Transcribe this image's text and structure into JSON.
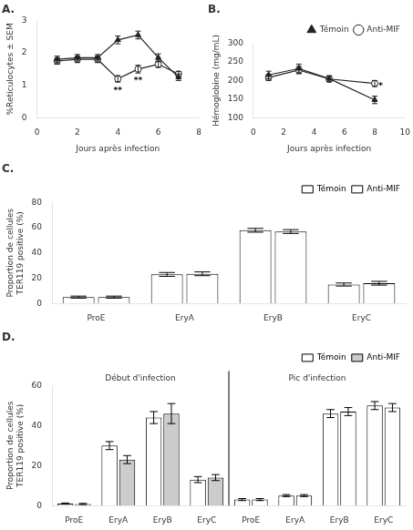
{
  "chart_data": [
    {
      "type": "line",
      "title": "A.",
      "xlabel": "Jours après infection",
      "ylabel": "%Reticulocytes ± SEM",
      "xlim": [
        0,
        8
      ],
      "xticks": [
        0,
        2,
        4,
        6,
        8
      ],
      "ylim": [
        0,
        3
      ],
      "yticks": [
        0,
        1,
        2,
        3
      ],
      "grid": false,
      "x": [
        1,
        2,
        3,
        4,
        5,
        6,
        7
      ],
      "series": [
        {
          "color": "#222222",
          "marker": "triangle",
          "values": [
            1.8,
            1.85,
            1.85,
            2.4,
            2.55,
            1.85,
            1.25
          ],
          "errors": [
            0.1,
            0.1,
            0.1,
            0.12,
            0.12,
            0.12,
            0.1
          ]
        },
        {
          "color": "#222222",
          "marker": "circle_open",
          "values": [
            1.75,
            1.8,
            1.8,
            1.2,
            1.5,
            1.65,
            1.35
          ],
          "errors": [
            0.1,
            0.1,
            0.1,
            0.1,
            0.12,
            0.1,
            0.08
          ]
        }
      ],
      "annotations": [
        {
          "x": 4,
          "y": 0.95,
          "text": "**"
        },
        {
          "x": 5,
          "y": 1.28,
          "text": "**"
        }
      ]
    },
    {
      "type": "line",
      "title": "B.",
      "xlabel": "Jours après infection",
      "ylabel": "Hémoglobine (mg/mL)",
      "xlim": [
        0,
        10
      ],
      "xticks": [
        0,
        2,
        4,
        6,
        8,
        10
      ],
      "ylim": [
        100,
        300
      ],
      "yticks": [
        100,
        150,
        200,
        250,
        300
      ],
      "grid": false,
      "legend": "upper right",
      "x": [
        1,
        3,
        5,
        8
      ],
      "series": [
        {
          "name": "Témoin",
          "color": "#222222",
          "marker": "triangle",
          "values": [
            215,
            232,
            205,
            148
          ],
          "errors": [
            10,
            12,
            8,
            10
          ]
        },
        {
          "name": "Anti-MIF",
          "color": "#222222",
          "marker": "circle_open",
          "values": [
            208,
            228,
            204,
            192
          ],
          "errors": [
            8,
            10,
            8,
            8
          ]
        }
      ],
      "annotations": [
        {
          "x": 8.4,
          "y": 196,
          "text": "*"
        }
      ]
    },
    {
      "type": "bar",
      "title": "C.",
      "ylabel": "Proportion de cellules\nTER119 positive (%)",
      "ylim": [
        0,
        80
      ],
      "yticks": [
        0,
        20,
        40,
        60,
        80
      ],
      "grid": false,
      "legend": "upper right",
      "categories": [
        "ProE",
        "EryA",
        "EryB",
        "EryC"
      ],
      "series": [
        {
          "name": "Témoin",
          "color": "#ffffff",
          "values": [
            5,
            23,
            58,
            15
          ],
          "errors": [
            0.8,
            1.5,
            1.5,
            1.2
          ]
        },
        {
          "name": "Anti-MIF",
          "color": "#ffffff",
          "values": [
            5,
            23.5,
            57,
            16
          ],
          "errors": [
            0.8,
            1.5,
            1.5,
            1.5
          ]
        }
      ]
    },
    {
      "type": "bar",
      "title": "D.",
      "ylabel": "Proportion de cellules\nTER119 positive (%)",
      "ylim": [
        0,
        60
      ],
      "yticks": [
        0,
        20,
        40,
        60
      ],
      "grid": false,
      "legend": "upper right",
      "categories": [
        "ProE",
        "EryA",
        "EryB",
        "EryC",
        "ProE",
        "EryA",
        "EryB",
        "EryC"
      ],
      "sections": [
        {
          "label": "Début d'infection",
          "count": 4
        },
        {
          "label": "Pic d'infection",
          "count": 4
        }
      ],
      "series": [
        {
          "name": "Témoin",
          "color": "#ffffff",
          "values": [
            1,
            30,
            44,
            13,
            3,
            5,
            46,
            50
          ],
          "errors": [
            0.3,
            2,
            3,
            1.5,
            0.5,
            0.5,
            2,
            2
          ]
        },
        {
          "name": "Anti-MIF",
          "colors": [
            "#cccccc",
            "#cccccc",
            "#cccccc",
            "#cccccc",
            "#ffffff",
            "#ffffff",
            "#ffffff",
            "#ffffff"
          ],
          "values": [
            0.8,
            23,
            46,
            14,
            3,
            5,
            47,
            49
          ],
          "errors": [
            0.3,
            2,
            5,
            1.5,
            0.5,
            0.5,
            2,
            2
          ]
        }
      ]
    }
  ]
}
